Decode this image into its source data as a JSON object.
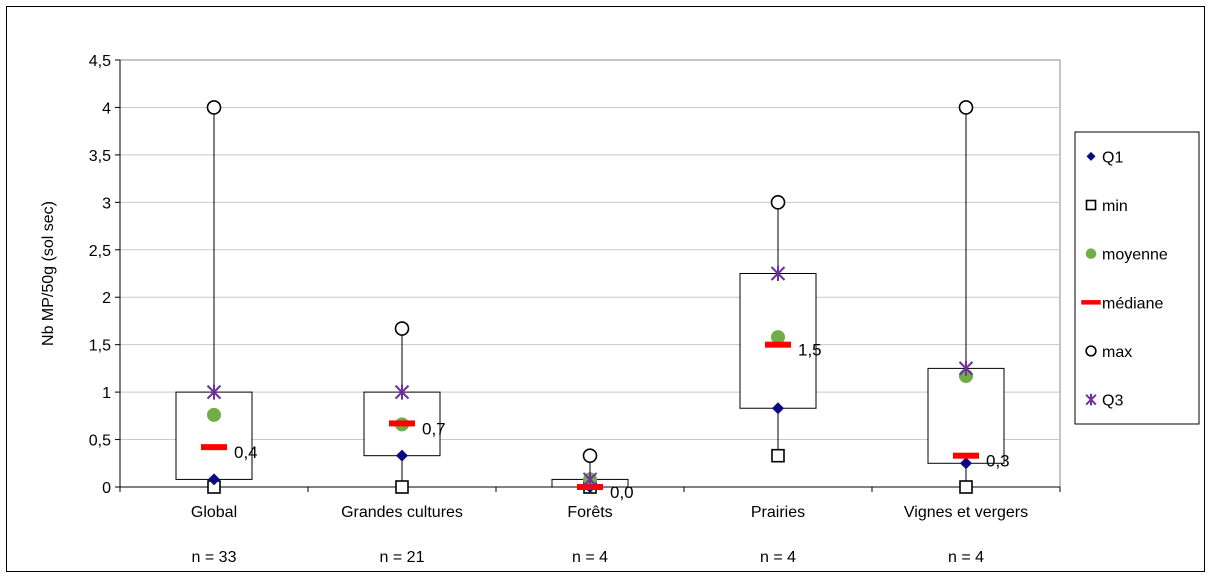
{
  "chart_data": {
    "type": "box",
    "ylabel": "Nb MP/50g (sol sec)",
    "ylim": [
      0,
      4.5
    ],
    "yticks": [
      0,
      0.5,
      1,
      1.5,
      2,
      2.5,
      3,
      3.5,
      4,
      4.5
    ],
    "ytick_labels": [
      "0",
      "0,5",
      "1",
      "1,5",
      "2",
      "2,5",
      "3",
      "3,5",
      "4",
      "4,5"
    ],
    "grid": true,
    "legend_position": "right",
    "categories": [
      "Global",
      "Grandes cultures",
      "Forêts",
      "Prairies",
      "Vignes et vergers"
    ],
    "sample_sizes": [
      "n = 33",
      "n = 21",
      "n = 4",
      "n = 4",
      "n = 4"
    ],
    "series": [
      {
        "name": "Q1",
        "values": [
          0.08,
          0.33,
          0.0,
          0.83,
          0.25
        ],
        "color": "#0a0a80",
        "marker": "diamond"
      },
      {
        "name": "min",
        "values": [
          0,
          0,
          0,
          0.33,
          0
        ],
        "color": "#000000",
        "marker": "square-open"
      },
      {
        "name": "moyenne",
        "values": [
          0.76,
          0.66,
          0.08,
          1.58,
          1.17
        ],
        "color": "#70ad47",
        "marker": "circle"
      },
      {
        "name": "médiane",
        "values": [
          0.42,
          0.67,
          0.0,
          1.5,
          0.33
        ],
        "color": "#ff0000",
        "marker": "dash"
      },
      {
        "name": "max",
        "values": [
          4,
          1.67,
          0.33,
          3,
          4
        ],
        "color": "#000000",
        "marker": "circle-open"
      },
      {
        "name": "Q3",
        "values": [
          1,
          1,
          0.08,
          2.25,
          1.25
        ],
        "color": "#7030a0",
        "marker": "star"
      }
    ],
    "median_labels": [
      "0,4",
      "0,7",
      "0,0",
      "1,5",
      "0,3"
    ]
  }
}
